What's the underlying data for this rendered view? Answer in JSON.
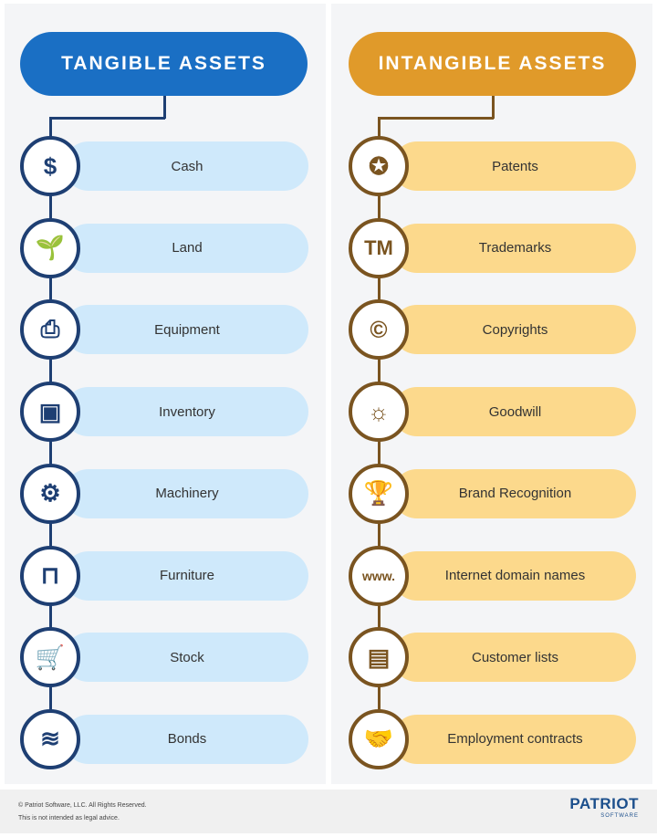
{
  "tangible": {
    "title": "TANGIBLE ASSETS",
    "colors": {
      "header": "#1a6fc4",
      "line": "#1e3f73",
      "bar": "#cfe9fb"
    },
    "items": [
      {
        "label": "Cash",
        "icon": "cash-icon",
        "glyph": "$"
      },
      {
        "label": "Land",
        "icon": "plant-icon",
        "glyph": "🌱"
      },
      {
        "label": "Equipment",
        "icon": "printer-icon",
        "glyph": "⎙"
      },
      {
        "label": "Inventory",
        "icon": "box-icon",
        "glyph": "▣"
      },
      {
        "label": "Machinery",
        "icon": "gear-icon",
        "glyph": "⚙"
      },
      {
        "label": "Furniture",
        "icon": "desk-icon",
        "glyph": "⊓"
      },
      {
        "label": "Stock",
        "icon": "cart-icon",
        "glyph": "🛒"
      },
      {
        "label": "Bonds",
        "icon": "papers-icon",
        "glyph": "≋"
      }
    ]
  },
  "intangible": {
    "title": "INTANGIBLE ASSETS",
    "colors": {
      "header": "#e09a2a",
      "line": "#7a5420",
      "bar": "#fcd98c"
    },
    "items": [
      {
        "label": "Patents",
        "icon": "ribbon-award-icon",
        "glyph": "✪"
      },
      {
        "label": "Trademarks",
        "icon": "trademark-icon",
        "glyph": "TM"
      },
      {
        "label": "Copyrights",
        "icon": "copyright-icon",
        "glyph": "©"
      },
      {
        "label": "Goodwill",
        "icon": "sun-icon",
        "glyph": "☼"
      },
      {
        "label": "Brand Recognition",
        "icon": "trophy-icon",
        "glyph": "🏆"
      },
      {
        "label": "Internet domain names",
        "icon": "www-icon",
        "glyph": "www."
      },
      {
        "label": "Customer lists",
        "icon": "id-card-icon",
        "glyph": "▤"
      },
      {
        "label": "Employment contracts",
        "icon": "handshake-icon",
        "glyph": "🤝"
      }
    ]
  },
  "footer": {
    "copyright": "© Patriot Software, LLC. All Rights Reserved.",
    "disclaimer": "This is not intended as legal advice.",
    "logo_text": "PATRIOT",
    "logo_sub": "SOFTWARE"
  }
}
